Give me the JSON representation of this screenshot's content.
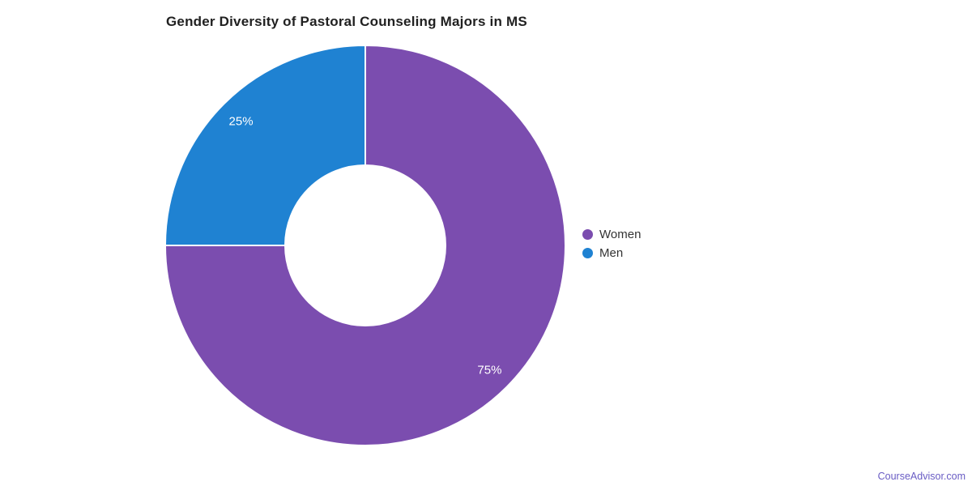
{
  "title": "Gender Diversity of Pastoral Counseling Majors in MS",
  "footer": {
    "text": "CourseAdvisor.com",
    "color": "#695cc4"
  },
  "chart_data": {
    "type": "pie",
    "title": "Gender Diversity of Pastoral Counseling Majors in MS",
    "donut": true,
    "direction": "clockwise",
    "start_angle_deg": 0,
    "legend_position": "right",
    "border_color": "#ffffff",
    "label_color": "#ffffff",
    "categories": [
      "Women",
      "Men"
    ],
    "values": [
      75,
      25
    ],
    "slices": [
      {
        "label": "Women",
        "value": 75,
        "percent_label": "75%",
        "color": "#7b4daf"
      },
      {
        "label": "Men",
        "value": 25,
        "percent_label": "25%",
        "color": "#1f82d2"
      }
    ]
  }
}
